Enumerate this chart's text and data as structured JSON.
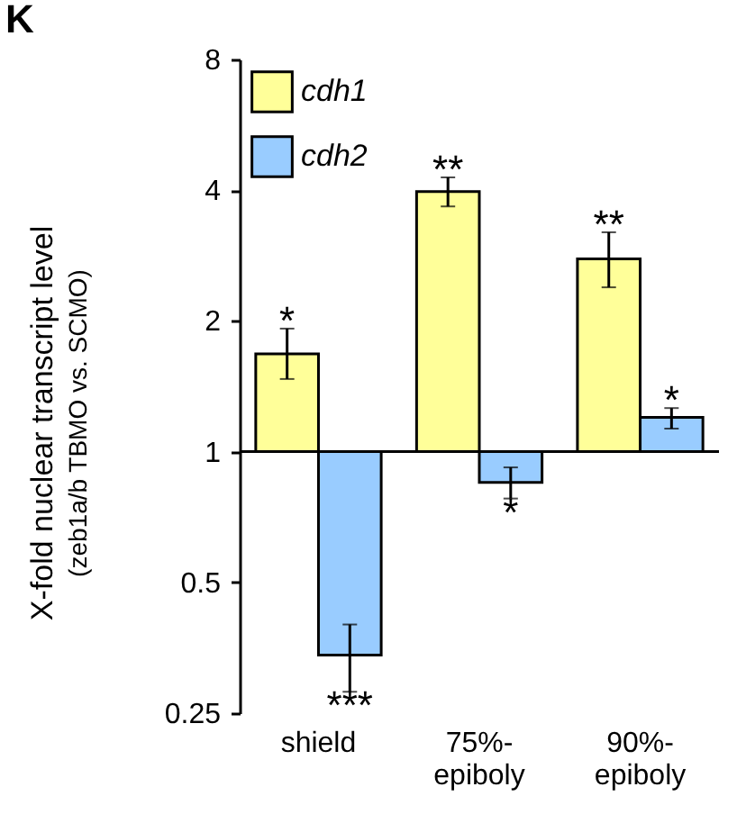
{
  "chart_data": {
    "type": "bar",
    "ylabel": "X-fold nuclear transcript level\n(zeb1a/b TBMO vs. SCMO)",
    "categories": [
      "shield",
      "75%-epiboly",
      "90%-epiboly"
    ],
    "series": [
      {
        "name": "cdh1",
        "color": "#ffff99",
        "base": [
          1,
          1,
          1
        ],
        "values": [
          0.68,
          2.97,
          1.78
        ],
        "errors": [
          [
            1.47,
            1.92
          ],
          [
            3.67,
            4.28
          ],
          [
            2.39,
            3.2
          ]
        ]
      },
      {
        "name": "cdh2",
        "color": "#99ccff",
        "base": [
          1,
          1,
          1
        ],
        "values": [
          -0.66,
          -0.15,
          0.2
        ],
        "errors": [
          [
            0.28,
            0.4
          ],
          [
            0.78,
            0.92
          ],
          [
            1.13,
            1.26
          ]
        ]
      }
    ],
    "ref_lines": [
      {
        "axis": "y",
        "value": 1
      }
    ],
    "log": true,
    "ylim": [
      0.25,
      8
    ],
    "yticks": [
      0.25,
      0.5,
      1,
      2,
      4,
      8
    ],
    "legend": "top left",
    "annotations": [
      "K",
      "*",
      "**",
      "**",
      "***",
      "*",
      "*"
    ]
  }
}
